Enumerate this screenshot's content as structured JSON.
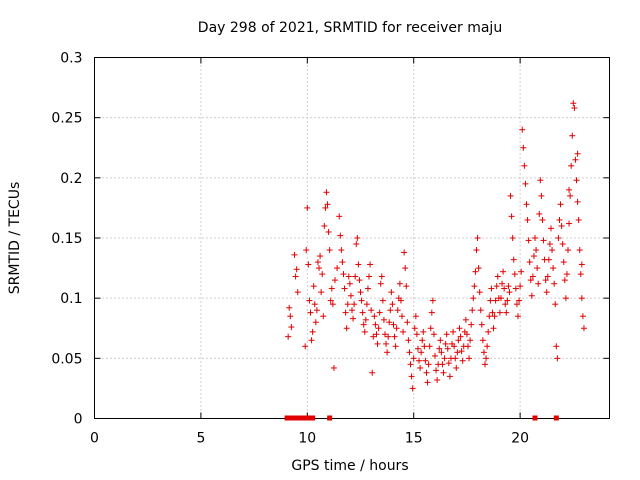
{
  "chart_data": {
    "type": "scatter",
    "title": "Day 298 of 2021, SRMTID for receiver maju",
    "xlabel": "GPS time / hours",
    "ylabel": "SRMTID / TECUs",
    "xlim": [
      0,
      24.2
    ],
    "ylim": [
      0,
      0.3
    ],
    "xticks": [
      0,
      5,
      10,
      15,
      20
    ],
    "yticks": [
      0,
      0.05,
      0.1,
      0.15,
      0.2,
      0.25,
      0.3
    ],
    "grid": true,
    "marker": "+",
    "color": "#e00000",
    "series": [
      {
        "name": "SRMTID",
        "points": [
          [
            9.1,
            0.068
          ],
          [
            9.15,
            0.092
          ],
          [
            9.2,
            0.085
          ],
          [
            9.25,
            0.076
          ],
          [
            9.4,
            0.136
          ],
          [
            9.45,
            0.118
          ],
          [
            9.5,
            0.124
          ],
          [
            9.55,
            0.105
          ],
          [
            9.9,
            0.06
          ],
          [
            9.95,
            0.14
          ],
          [
            10.0,
            0.175
          ],
          [
            10.05,
            0.128
          ],
          [
            10.1,
            0.098
          ],
          [
            10.15,
            0.088
          ],
          [
            10.2,
            0.065
          ],
          [
            10.25,
            0.072
          ],
          [
            10.3,
            0.11
          ],
          [
            10.35,
            0.095
          ],
          [
            10.4,
            0.08
          ],
          [
            10.45,
            0.09
          ],
          [
            10.5,
            0.13
          ],
          [
            10.55,
            0.125
          ],
          [
            10.6,
            0.135
          ],
          [
            10.65,
            0.105
          ],
          [
            10.7,
            0.12
          ],
          [
            10.75,
            0.085
          ],
          [
            10.8,
            0.16
          ],
          [
            10.85,
            0.175
          ],
          [
            10.9,
            0.188
          ],
          [
            10.95,
            0.178
          ],
          [
            11.0,
            0.155
          ],
          [
            11.05,
            0.14
          ],
          [
            11.1,
            0.098
          ],
          [
            11.15,
            0.108
          ],
          [
            11.2,
            0.095
          ],
          [
            11.25,
            0.042
          ],
          [
            11.3,
            0.115
          ],
          [
            11.4,
            0.125
          ],
          [
            11.5,
            0.168
          ],
          [
            11.55,
            0.152
          ],
          [
            11.6,
            0.14
          ],
          [
            11.65,
            0.13
          ],
          [
            11.7,
            0.12
          ],
          [
            11.75,
            0.108
          ],
          [
            11.8,
            0.088
          ],
          [
            11.85,
            0.075
          ],
          [
            11.9,
            0.095
          ],
          [
            11.95,
            0.118
          ],
          [
            12.0,
            0.112
          ],
          [
            12.05,
            0.102
          ],
          [
            12.1,
            0.09
          ],
          [
            12.15,
            0.083
          ],
          [
            12.2,
            0.095
          ],
          [
            12.25,
            0.118
          ],
          [
            12.3,
            0.145
          ],
          [
            12.35,
            0.15
          ],
          [
            12.4,
            0.128
          ],
          [
            12.45,
            0.115
          ],
          [
            12.5,
            0.105
          ],
          [
            12.55,
            0.098
          ],
          [
            12.6,
            0.088
          ],
          [
            12.65,
            0.078
          ],
          [
            12.7,
            0.072
          ],
          [
            12.75,
            0.082
          ],
          [
            12.8,
            0.095
          ],
          [
            12.85,
            0.108
          ],
          [
            12.9,
            0.118
          ],
          [
            12.95,
            0.128
          ],
          [
            13.0,
            0.09
          ],
          [
            13.05,
            0.038
          ],
          [
            13.1,
            0.068
          ],
          [
            13.15,
            0.085
          ],
          [
            13.2,
            0.078
          ],
          [
            13.25,
            0.07
          ],
          [
            13.3,
            0.062
          ],
          [
            13.35,
            0.075
          ],
          [
            13.4,
            0.088
          ],
          [
            13.45,
            0.112
          ],
          [
            13.5,
            0.118
          ],
          [
            13.55,
            0.098
          ],
          [
            13.6,
            0.082
          ],
          [
            13.65,
            0.07
          ],
          [
            13.7,
            0.062
          ],
          [
            13.75,
            0.055
          ],
          [
            13.8,
            0.068
          ],
          [
            13.85,
            0.08
          ],
          [
            13.9,
            0.09
          ],
          [
            13.95,
            0.105
          ],
          [
            14.0,
            0.095
          ],
          [
            14.05,
            0.078
          ],
          [
            14.1,
            0.068
          ],
          [
            14.15,
            0.06
          ],
          [
            14.2,
            0.075
          ],
          [
            14.25,
            0.09
          ],
          [
            14.3,
            0.1
          ],
          [
            14.35,
            0.112
          ],
          [
            14.4,
            0.098
          ],
          [
            14.45,
            0.085
          ],
          [
            14.5,
            0.072
          ],
          [
            14.55,
            0.138
          ],
          [
            14.6,
            0.125
          ],
          [
            14.65,
            0.11
          ],
          [
            14.7,
            0.08
          ],
          [
            14.75,
            0.065
          ],
          [
            14.8,
            0.055
          ],
          [
            14.85,
            0.045
          ],
          [
            14.9,
            0.035
          ],
          [
            14.95,
            0.025
          ],
          [
            15.0,
            0.05
          ],
          [
            15.05,
            0.075
          ],
          [
            15.1,
            0.085
          ],
          [
            15.15,
            0.07
          ],
          [
            15.2,
            0.058
          ],
          [
            15.25,
            0.048
          ],
          [
            15.3,
            0.042
          ],
          [
            15.35,
            0.055
          ],
          [
            15.4,
            0.065
          ],
          [
            15.45,
            0.072
          ],
          [
            15.5,
            0.06
          ],
          [
            15.55,
            0.048
          ],
          [
            15.6,
            0.038
          ],
          [
            15.65,
            0.03
          ],
          [
            15.7,
            0.045
          ],
          [
            15.75,
            0.06
          ],
          [
            15.8,
            0.075
          ],
          [
            15.85,
            0.088
          ],
          [
            15.9,
            0.098
          ],
          [
            15.95,
            0.07
          ],
          [
            16.0,
            0.052
          ],
          [
            16.05,
            0.04
          ],
          [
            16.1,
            0.032
          ],
          [
            16.15,
            0.045
          ],
          [
            16.2,
            0.058
          ],
          [
            16.25,
            0.065
          ],
          [
            16.3,
            0.055
          ],
          [
            16.35,
            0.045
          ],
          [
            16.4,
            0.038
          ],
          [
            16.45,
            0.05
          ],
          [
            16.5,
            0.062
          ],
          [
            16.55,
            0.07
          ],
          [
            16.6,
            0.058
          ],
          [
            16.65,
            0.046
          ],
          [
            16.7,
            0.035
          ],
          [
            16.75,
            0.05
          ],
          [
            16.8,
            0.062
          ],
          [
            16.85,
            0.072
          ],
          [
            16.9,
            0.06
          ],
          [
            16.95,
            0.05
          ],
          [
            17.0,
            0.042
          ],
          [
            17.05,
            0.055
          ],
          [
            17.1,
            0.065
          ],
          [
            17.15,
            0.075
          ],
          [
            17.2,
            0.068
          ],
          [
            17.25,
            0.056
          ],
          [
            17.3,
            0.048
          ],
          [
            17.35,
            0.06
          ],
          [
            17.4,
            0.072
          ],
          [
            17.45,
            0.082
          ],
          [
            17.5,
            0.07
          ],
          [
            17.55,
            0.06
          ],
          [
            17.6,
            0.05
          ],
          [
            17.65,
            0.065
          ],
          [
            17.7,
            0.078
          ],
          [
            17.75,
            0.09
          ],
          [
            17.8,
            0.1
          ],
          [
            17.85,
            0.11
          ],
          [
            17.9,
            0.122
          ],
          [
            17.95,
            0.14
          ],
          [
            18.0,
            0.15
          ],
          [
            18.05,
            0.125
          ],
          [
            18.1,
            0.105
          ],
          [
            18.15,
            0.09
          ],
          [
            18.2,
            0.078
          ],
          [
            18.25,
            0.065
          ],
          [
            18.3,
            0.055
          ],
          [
            18.35,
            0.045
          ],
          [
            18.4,
            0.05
          ],
          [
            18.45,
            0.06
          ],
          [
            18.5,
            0.072
          ],
          [
            18.55,
            0.085
          ],
          [
            18.6,
            0.098
          ],
          [
            18.65,
            0.108
          ],
          [
            18.7,
            0.088
          ],
          [
            18.75,
            0.075
          ],
          [
            18.8,
            0.085
          ],
          [
            18.85,
            0.098
          ],
          [
            18.9,
            0.11
          ],
          [
            18.95,
            0.118
          ],
          [
            19.0,
            0.1
          ],
          [
            19.05,
            0.088
          ],
          [
            19.1,
            0.1
          ],
          [
            19.15,
            0.112
          ],
          [
            19.2,
            0.122
          ],
          [
            19.25,
            0.108
          ],
          [
            19.3,
            0.095
          ],
          [
            19.35,
            0.088
          ],
          [
            19.4,
            0.098
          ],
          [
            19.45,
            0.11
          ],
          [
            19.5,
            0.105
          ],
          [
            19.55,
            0.185
          ],
          [
            19.6,
            0.168
          ],
          [
            19.65,
            0.15
          ],
          [
            19.7,
            0.132
          ],
          [
            19.75,
            0.12
          ],
          [
            19.8,
            0.108
          ],
          [
            19.85,
            0.095
          ],
          [
            19.9,
            0.085
          ],
          [
            19.95,
            0.098
          ],
          [
            20.0,
            0.11
          ],
          [
            20.05,
            0.122
          ],
          [
            20.1,
            0.24
          ],
          [
            20.15,
            0.225
          ],
          [
            20.2,
            0.21
          ],
          [
            20.25,
            0.195
          ],
          [
            20.3,
            0.178
          ],
          [
            20.35,
            0.165
          ],
          [
            20.4,
            0.148
          ],
          [
            20.45,
            0.13
          ],
          [
            20.5,
            0.115
          ],
          [
            20.55,
            0.102
          ],
          [
            20.6,
            0.118
          ],
          [
            20.65,
            0.135
          ],
          [
            20.7,
            0.15
          ],
          [
            20.75,
            0.14
          ],
          [
            20.8,
            0.125
          ],
          [
            20.85,
            0.112
          ],
          [
            20.9,
            0.17
          ],
          [
            20.95,
            0.198
          ],
          [
            21.0,
            0.185
          ],
          [
            21.05,
            0.165
          ],
          [
            21.1,
            0.148
          ],
          [
            21.15,
            0.132
          ],
          [
            21.2,
            0.115
          ],
          [
            21.25,
            0.105
          ],
          [
            21.3,
            0.118
          ],
          [
            21.35,
            0.132
          ],
          [
            21.4,
            0.145
          ],
          [
            21.45,
            0.158
          ],
          [
            21.5,
            0.14
          ],
          [
            21.55,
            0.125
          ],
          [
            21.6,
            0.112
          ],
          [
            21.65,
            0.095
          ],
          [
            21.7,
            0.06
          ],
          [
            21.75,
            0.05
          ],
          [
            21.8,
            0.15
          ],
          [
            21.85,
            0.165
          ],
          [
            21.9,
            0.178
          ],
          [
            21.95,
            0.16
          ],
          [
            22.0,
            0.145
          ],
          [
            22.05,
            0.13
          ],
          [
            22.1,
            0.115
          ],
          [
            22.15,
            0.1
          ],
          [
            22.2,
            0.12
          ],
          [
            22.25,
            0.14
          ],
          [
            22.3,
            0.162
          ],
          [
            22.35,
            0.185
          ],
          [
            22.4,
            0.21
          ],
          [
            22.45,
            0.235
          ],
          [
            22.5,
            0.262
          ],
          [
            22.55,
            0.258
          ],
          [
            22.6,
            0.215
          ],
          [
            22.65,
            0.198
          ],
          [
            22.7,
            0.18
          ],
          [
            22.75,
            0.165
          ],
          [
            22.8,
            0.14
          ],
          [
            22.85,
            0.12
          ],
          [
            22.9,
            0.1
          ],
          [
            22.95,
            0.085
          ],
          [
            23.0,
            0.075
          ],
          [
            22.9,
            0.128
          ],
          [
            22.7,
            0.22
          ],
          [
            22.3,
            0.19
          ]
        ]
      }
    ],
    "rug_x": [
      9.05,
      9.2,
      9.35,
      9.45,
      9.55,
      9.65,
      9.75,
      9.85,
      9.95,
      10.05,
      10.15,
      10.25,
      11.05,
      20.7,
      21.7
    ]
  }
}
